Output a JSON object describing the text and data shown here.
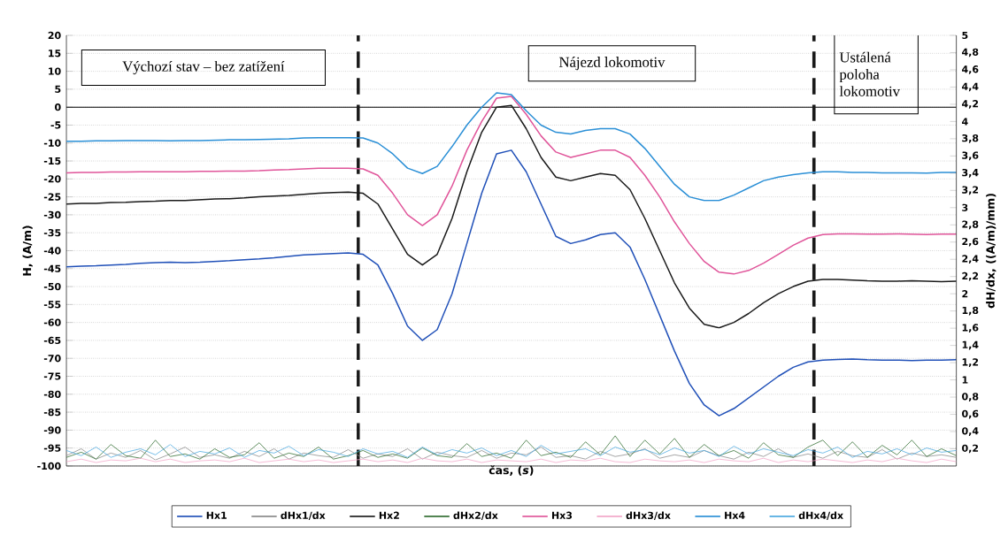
{
  "chart_data": {
    "type": "line",
    "xlabel": "čas, (*s*)",
    "ylabel": "H, (A/m)",
    "y2label": "dH/dx, ((A/m)/mm)",
    "categories": [
      null,
      null,
      null,
      null,
      null,
      null,
      null,
      null,
      null,
      null,
      null,
      null,
      null,
      null,
      null,
      null,
      null,
      null,
      null,
      null,
      null,
      null,
      null,
      null,
      null,
      null,
      null,
      null,
      null,
      null,
      null,
      null,
      null,
      null,
      null,
      null,
      null,
      null,
      null,
      null,
      null,
      null,
      null,
      null,
      null,
      null,
      null,
      null,
      null,
      null,
      null,
      null,
      null,
      null,
      null,
      null,
      null,
      null,
      null,
      null,
      null
    ],
    "ylim": [
      -100,
      20
    ],
    "yticks": [
      -100,
      -95,
      -90,
      -85,
      -80,
      -75,
      -70,
      -65,
      -60,
      -55,
      -50,
      -45,
      -40,
      -35,
      -30,
      -25,
      -20,
      -15,
      -10,
      -5,
      0,
      5,
      10,
      15,
      20
    ],
    "y2lim": [
      0,
      5
    ],
    "y2ticks": [
      {
        "value": 0.2,
        "label": "0,2"
      },
      {
        "value": 0.4,
        "label": "0,4"
      },
      {
        "value": 0.6,
        "label": "0,6"
      },
      {
        "value": 0.8,
        "label": "0,8"
      },
      1,
      {
        "value": 1.2,
        "label": "1,2"
      },
      {
        "value": 1.4,
        "label": "1,4"
      },
      {
        "value": 1.6,
        "label": "1,6"
      },
      {
        "value": 1.8,
        "label": "1,8"
      },
      2,
      {
        "value": 2.2,
        "label": "2,2"
      },
      {
        "value": 2.4,
        "label": "2,4"
      },
      {
        "value": 2.6,
        "label": "2,6"
      },
      {
        "value": 2.8,
        "label": "2,8"
      },
      3,
      {
        "value": 3.2,
        "label": "3,2"
      },
      {
        "value": 3.4,
        "label": "3,4"
      },
      {
        "value": 3.6,
        "label": "3,6"
      },
      {
        "value": 3.8,
        "label": "3,8"
      },
      4,
      {
        "value": 4.2,
        "label": "4,2"
      },
      {
        "value": 4.4,
        "label": "4,4"
      },
      {
        "value": 4.6,
        "label": "4,6"
      },
      {
        "value": 4.8,
        "label": "4,8"
      },
      5
    ],
    "grid": "y",
    "legend": "bottom",
    "ref_lines": [
      {
        "axis": "y",
        "value": 0,
        "color": "#000000",
        "line_style": "solid"
      }
    ],
    "annotations": [
      "Výchozí stav – bez zatížení",
      "Nájezd lokomotiv",
      "Ustálená poloha lokomotiv"
    ],
    "series": [
      {
        "name": "Hx1",
        "color": "#2050b8",
        "values": [
          -44.5,
          -44.3,
          -44.2,
          -44.0,
          -43.8,
          -43.5,
          -43.3,
          -43.2,
          -43.3,
          -43.2,
          -43.0,
          -42.8,
          -42.5,
          -42.3,
          -42.0,
          -41.6,
          -41.2,
          -41.0,
          -40.8,
          -40.6,
          -41,
          -44,
          -52,
          -61,
          -65,
          -62,
          -52,
          -38,
          -24,
          -13,
          -12,
          -18,
          -27,
          -36,
          -38,
          -37,
          -35.5,
          -35,
          -39,
          -48,
          -58,
          -68,
          -77,
          -83,
          -86,
          -84,
          -81,
          -78,
          -75,
          -72.5,
          -71,
          -70.5,
          -70.3,
          -70.2,
          -70.4,
          -70.5,
          -70.5,
          -70.6,
          -70.5,
          -70.5,
          -70.4
        ]
      },
      {
        "name": "dHx1/dx",
        "color": "#888888",
        "axis": "y2",
        "values": [
          0.12,
          0.2,
          0.08,
          0.15,
          0.1,
          0.18,
          0.07,
          0.14,
          0.22,
          0.1,
          0.13,
          0.09,
          0.17,
          0.11,
          0.2,
          0.08,
          0.15,
          0.12,
          0.1,
          0.19,
          0.09,
          0.14,
          0.11,
          0.2,
          0.08,
          0.16,
          0.12,
          0.1,
          0.18,
          0.09,
          0.15,
          0.13,
          0.22,
          0.1,
          0.12,
          0.08,
          0.17,
          0.11,
          0.14,
          0.2,
          0.09,
          0.13,
          0.1,
          0.18,
          0.12,
          0.08,
          0.16,
          0.11,
          0.2,
          0.1,
          0.14,
          0.09,
          0.17,
          0.12,
          0.1,
          0.19,
          0.08,
          0.15,
          0.11,
          0.13,
          0.1
        ]
      },
      {
        "name": "Hx2",
        "color": "#1a1a1a",
        "values": [
          -27,
          -26.8,
          -26.8,
          -26.6,
          -26.5,
          -26.3,
          -26.2,
          -26.0,
          -26.0,
          -25.8,
          -25.6,
          -25.5,
          -25.3,
          -25.0,
          -24.8,
          -24.6,
          -24.3,
          -24.0,
          -23.8,
          -23.7,
          -24,
          -27,
          -34,
          -41,
          -44,
          -41,
          -31,
          -18,
          -7,
          0,
          0.5,
          -6,
          -14,
          -19.5,
          -20.5,
          -19.5,
          -18.5,
          -19,
          -23,
          -31,
          -40,
          -49,
          -56,
          -60.5,
          -61.5,
          -60,
          -57.5,
          -54.5,
          -52,
          -50,
          -48.5,
          -48,
          -48,
          -48.2,
          -48.4,
          -48.5,
          -48.5,
          -48.4,
          -48.5,
          -48.6,
          -48.5
        ]
      },
      {
        "name": "dHx2/dx",
        "color": "#2e6b2e",
        "axis": "y2",
        "values": [
          0.1,
          0.16,
          0.08,
          0.25,
          0.12,
          0.09,
          0.3,
          0.11,
          0.14,
          0.08,
          0.2,
          0.1,
          0.13,
          0.27,
          0.09,
          0.15,
          0.11,
          0.22,
          0.08,
          0.12,
          0.18,
          0.1,
          0.14,
          0.09,
          0.21,
          0.12,
          0.1,
          0.26,
          0.11,
          0.15,
          0.09,
          0.3,
          0.12,
          0.16,
          0.1,
          0.28,
          0.13,
          0.35,
          0.11,
          0.3,
          0.14,
          0.32,
          0.1,
          0.25,
          0.12,
          0.18,
          0.09,
          0.27,
          0.13,
          0.1,
          0.22,
          0.3,
          0.12,
          0.28,
          0.1,
          0.24,
          0.13,
          0.3,
          0.11,
          0.2,
          0.12
        ]
      },
      {
        "name": "Hx3",
        "color": "#e0559a",
        "values": [
          -18.3,
          -18.2,
          -18.2,
          -18.1,
          -18.1,
          -18.0,
          -18.0,
          -18.0,
          -18.0,
          -17.9,
          -17.9,
          -17.8,
          -17.8,
          -17.7,
          -17.5,
          -17.4,
          -17.2,
          -17.0,
          -17.0,
          -17.0,
          -17.2,
          -19,
          -24,
          -30,
          -33,
          -30,
          -22,
          -12,
          -4,
          2.5,
          3,
          -2,
          -8,
          -12.5,
          -14,
          -13,
          -12,
          -12,
          -14,
          -19,
          -25,
          -32,
          -38,
          -43,
          -46,
          -46.5,
          -45.5,
          -43.5,
          -41,
          -38.5,
          -36.5,
          -35.5,
          -35.3,
          -35.3,
          -35.4,
          -35.4,
          -35.3,
          -35.4,
          -35.5,
          -35.4,
          -35.4
        ]
      },
      {
        "name": "dHx3/dx",
        "color": "#f2a6c8",
        "axis": "y2",
        "values": [
          0.05,
          0.08,
          0.04,
          0.07,
          0.06,
          0.09,
          0.05,
          0.08,
          0.04,
          0.06,
          0.07,
          0.05,
          0.09,
          0.04,
          0.06,
          0.08,
          0.05,
          0.07,
          0.04,
          0.06,
          0.08,
          0.05,
          0.07,
          0.04,
          0.09,
          0.06,
          0.05,
          0.08,
          0.04,
          0.07,
          0.06,
          0.05,
          0.08,
          0.04,
          0.07,
          0.06,
          0.09,
          0.05,
          0.04,
          0.08,
          0.06,
          0.05,
          0.07,
          0.04,
          0.08,
          0.06,
          0.05,
          0.09,
          0.04,
          0.07,
          0.05,
          0.08,
          0.06,
          0.04,
          0.07,
          0.05,
          0.09,
          0.06,
          0.04,
          0.08,
          0.05
        ]
      },
      {
        "name": "Hx4",
        "color": "#2a8fd6",
        "values": [
          -9.5,
          -9.5,
          -9.4,
          -9.4,
          -9.3,
          -9.3,
          -9.3,
          -9.4,
          -9.3,
          -9.3,
          -9.2,
          -9.1,
          -9.1,
          -9.0,
          -8.9,
          -8.8,
          -8.6,
          -8.5,
          -8.5,
          -8.5,
          -8.6,
          -10,
          -13,
          -17,
          -18.5,
          -16.5,
          -11,
          -5,
          0,
          4,
          3.5,
          -1,
          -5,
          -7,
          -7.5,
          -6.5,
          -6,
          -6,
          -7.5,
          -11.5,
          -16.5,
          -21.5,
          -25,
          -26,
          -26,
          -24.5,
          -22.5,
          -20.5,
          -19.5,
          -18.8,
          -18.3,
          -18,
          -18,
          -18.2,
          -18.2,
          -18.3,
          -18.3,
          -18.3,
          -18.4,
          -18.2,
          -18.2
        ]
      },
      {
        "name": "dHx4/dx",
        "color": "#4aa8e0",
        "axis": "y2",
        "values": [
          0.18,
          0.12,
          0.22,
          0.1,
          0.16,
          0.2,
          0.13,
          0.25,
          0.11,
          0.17,
          0.14,
          0.21,
          0.1,
          0.18,
          0.15,
          0.23,
          0.12,
          0.19,
          0.16,
          0.11,
          0.2,
          0.14,
          0.17,
          0.1,
          0.22,
          0.13,
          0.19,
          0.15,
          0.21,
          0.12,
          0.18,
          0.11,
          0.24,
          0.14,
          0.17,
          0.2,
          0.12,
          0.22,
          0.16,
          0.19,
          0.13,
          0.21,
          0.15,
          0.18,
          0.11,
          0.23,
          0.14,
          0.2,
          0.16,
          0.12,
          0.19,
          0.15,
          0.22,
          0.1,
          0.17,
          0.14,
          0.2,
          0.13,
          0.21,
          0.16,
          0.18
        ]
      }
    ]
  }
}
